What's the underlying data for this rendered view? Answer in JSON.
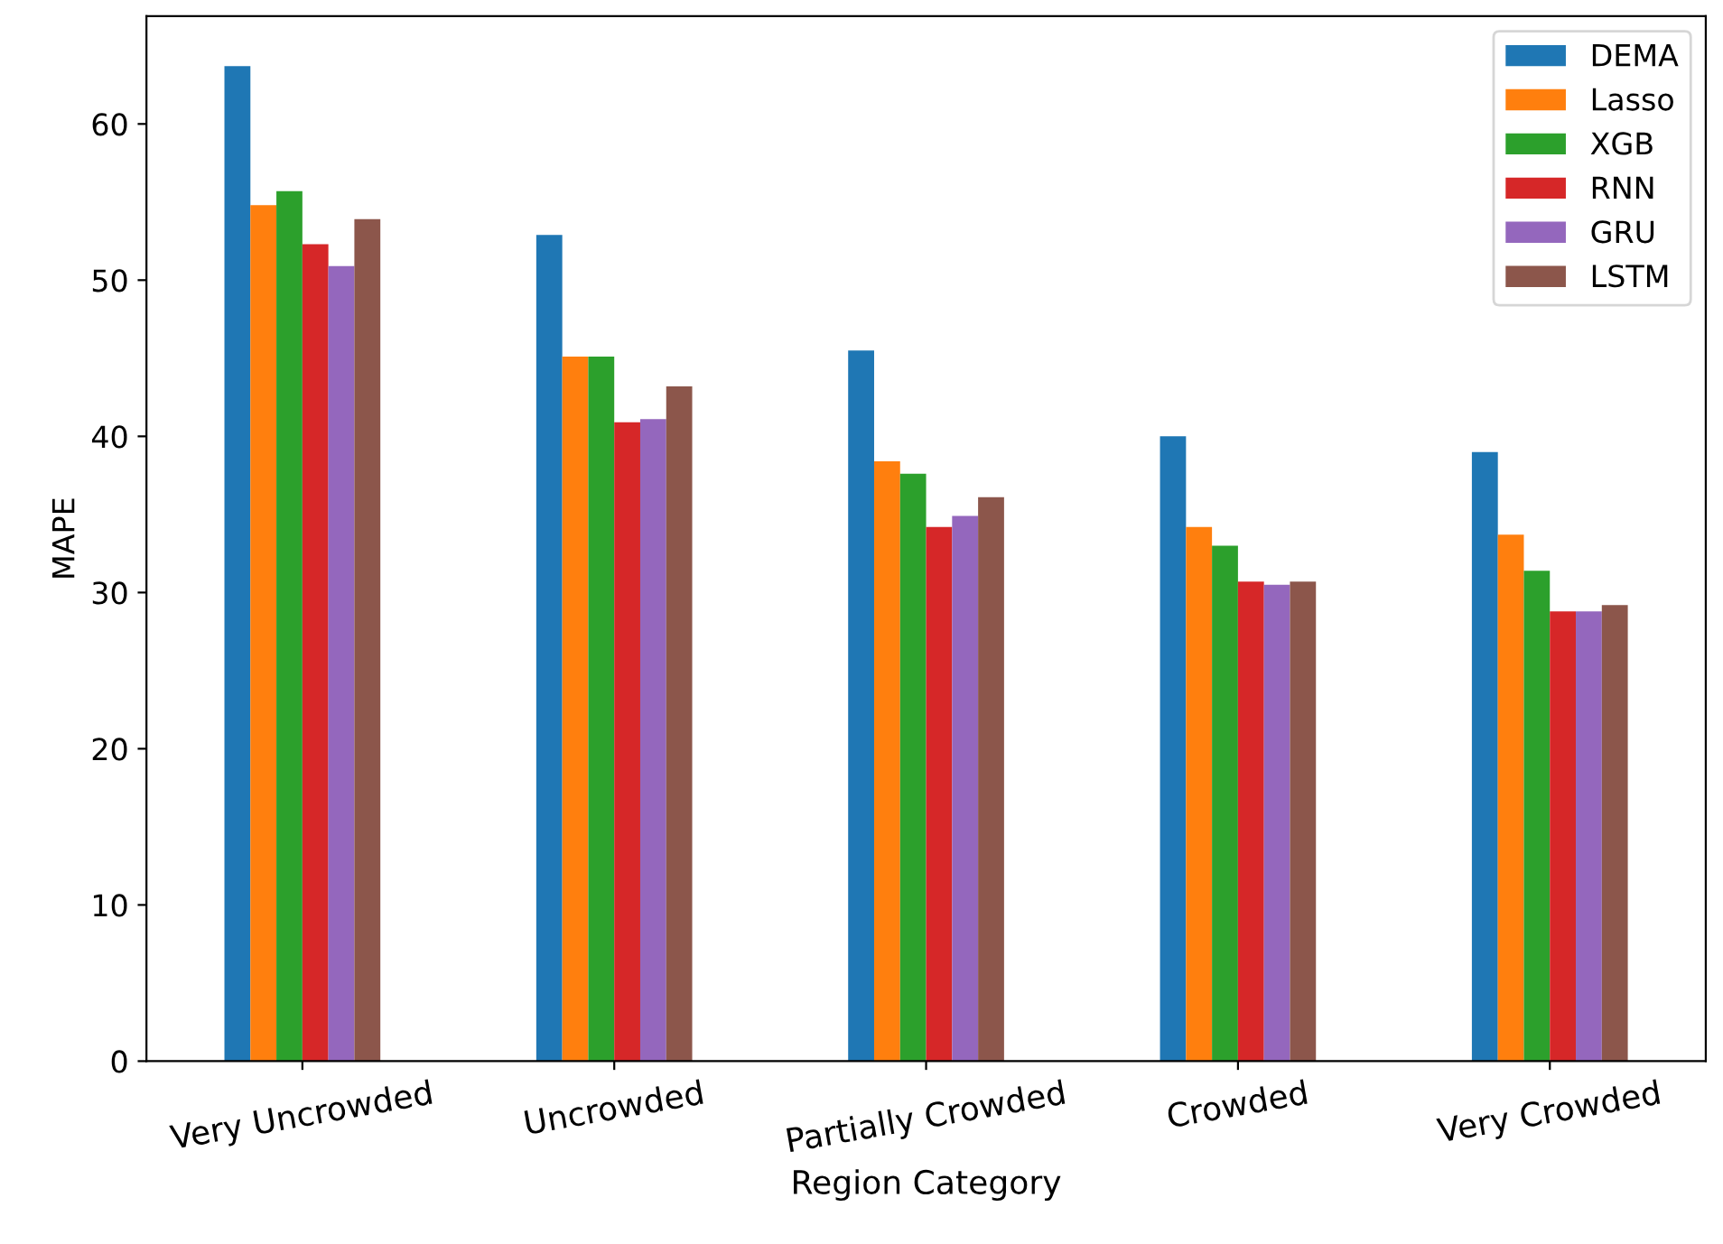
{
  "chart_data": {
    "type": "bar",
    "xlabel": "Region Category",
    "ylabel": "MAPE",
    "categories": [
      "Very Uncrowded",
      "Uncrowded",
      "Partially Crowded",
      "Crowded",
      "Very Crowded"
    ],
    "series": [
      {
        "name": "DEMA",
        "color": "#1f77b4",
        "values": [
          63.7,
          52.9,
          45.5,
          40.0,
          39.0
        ]
      },
      {
        "name": "Lasso",
        "color": "#ff7f0e",
        "values": [
          54.8,
          45.1,
          38.4,
          34.2,
          33.7
        ]
      },
      {
        "name": "XGB",
        "color": "#2ca02c",
        "values": [
          55.7,
          45.1,
          37.6,
          33.0,
          31.4
        ]
      },
      {
        "name": "RNN",
        "color": "#d62728",
        "values": [
          52.3,
          40.9,
          34.2,
          30.7,
          28.8
        ]
      },
      {
        "name": "GRU",
        "color": "#9467bd",
        "values": [
          50.9,
          41.1,
          34.9,
          30.5,
          28.8
        ]
      },
      {
        "name": "LSTM",
        "color": "#8c564b",
        "values": [
          53.9,
          43.2,
          36.1,
          30.7,
          29.2
        ]
      }
    ],
    "ylim": [
      0,
      66.9
    ],
    "yticks": [
      0,
      10,
      20,
      30,
      40,
      50,
      60
    ],
    "grid": false,
    "legend": "top right"
  }
}
